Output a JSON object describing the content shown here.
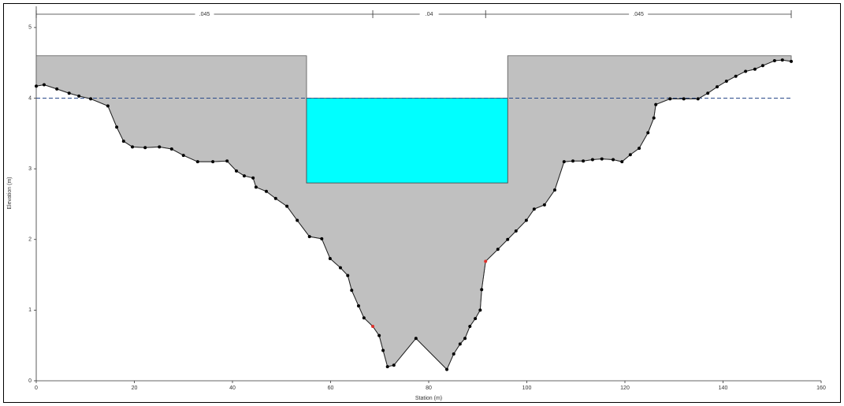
{
  "chart_data": {
    "type": "cross-section",
    "x_label": "Station (m)",
    "y_label": "Elevation (m)",
    "x": [
      0,
      1.6,
      4.2,
      6.7,
      8.7,
      11.1,
      14.6,
      16.4,
      17.8,
      19.6,
      22.2,
      25.1,
      27.6,
      30.0,
      32.9,
      36.0,
      38.9,
      40.8,
      42.4,
      44.2,
      44.8,
      46.9,
      48.8,
      51.1,
      53.2,
      55.7,
      58.2,
      59.9,
      62.0,
      63.5,
      64.3,
      65.7,
      66.8,
      68.6,
      69.9,
      70.7,
      71.6,
      72.9,
      77.4,
      83.7,
      85.1,
      86.4,
      87.4,
      88.4,
      89.5,
      90.5,
      90.8,
      91.6,
      94.1,
      96.1,
      97.8,
      99.9,
      101.5,
      103.6,
      105.7,
      107.6,
      109.4,
      111.5,
      113.4,
      115.3,
      117.6,
      119.4,
      121.1,
      122.9,
      124.7,
      125.9,
      126.3,
      129.2,
      132.0,
      134.9,
      136.9,
      138.8,
      140.7,
      142.6,
      144.6,
      146.5,
      148.1,
      150.5,
      152.1,
      153.9
    ],
    "values": [
      4.17,
      4.19,
      4.13,
      4.07,
      4.03,
      3.99,
      3.89,
      3.59,
      3.39,
      3.31,
      3.3,
      3.31,
      3.28,
      3.19,
      3.1,
      3.1,
      3.11,
      2.97,
      2.9,
      2.87,
      2.74,
      2.68,
      2.58,
      2.47,
      2.27,
      2.04,
      2.01,
      1.73,
      1.6,
      1.49,
      1.28,
      1.06,
      0.89,
      0.77,
      0.64,
      0.43,
      0.2,
      0.22,
      0.6,
      0.16,
      0.38,
      0.52,
      0.6,
      0.77,
      0.88,
      1.0,
      1.29,
      1.69,
      1.86,
      2.0,
      2.12,
      2.27,
      2.43,
      2.49,
      2.7,
      3.1,
      3.11,
      3.11,
      3.13,
      3.14,
      3.13,
      3.1,
      3.2,
      3.29,
      3.51,
      3.72,
      3.91,
      3.99,
      3.99,
      3.99,
      4.07,
      4.16,
      4.24,
      4.31,
      4.38,
      4.41,
      4.46,
      4.53,
      4.54,
      4.52
    ],
    "bank_stations": [
      68.6,
      91.6
    ],
    "bridge": {
      "left": 55.1,
      "right": 96.1,
      "high_chord": 4.6,
      "low_chord": 2.8
    },
    "water_surface": 4.0,
    "dimension_labels": [
      ".045",
      ".04",
      ".045"
    ],
    "xlim": [
      0,
      160
    ],
    "xticks": [
      0,
      20,
      40,
      60,
      80,
      100,
      120,
      140,
      160
    ],
    "ylim": [
      0,
      5.3
    ],
    "yticks": [
      0,
      1,
      2,
      3,
      4,
      5
    ],
    "ground_color": "#c0c0c0",
    "water_color": "#00ffff",
    "bank_color": "#e0302a"
  }
}
